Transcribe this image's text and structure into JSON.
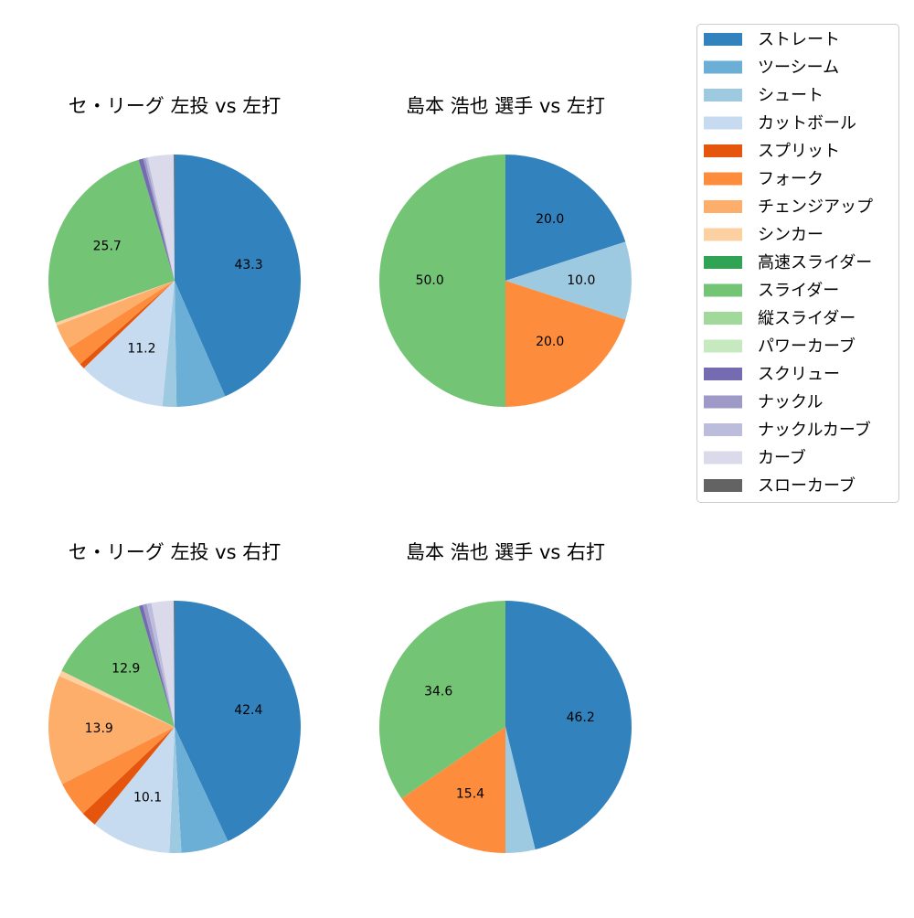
{
  "pitch_types": [
    {
      "name": "ストレート",
      "color": "#3182bd"
    },
    {
      "name": "ツーシーム",
      "color": "#6baed6"
    },
    {
      "name": "シュート",
      "color": "#9ecae1"
    },
    {
      "name": "カットボール",
      "color": "#c6dbef"
    },
    {
      "name": "スプリット",
      "color": "#e6550d"
    },
    {
      "name": "フォーク",
      "color": "#fd8d3c"
    },
    {
      "name": "チェンジアップ",
      "color": "#fdae6b"
    },
    {
      "name": "シンカー",
      "color": "#fdd0a2"
    },
    {
      "name": "高速スライダー",
      "color": "#31a354"
    },
    {
      "name": "スライダー",
      "color": "#74c476"
    },
    {
      "name": "縦スライダー",
      "color": "#a1d99b"
    },
    {
      "name": "パワーカーブ",
      "color": "#c7e9c0"
    },
    {
      "name": "スクリュー",
      "color": "#756bb1"
    },
    {
      "name": "ナックル",
      "color": "#9e9ac8"
    },
    {
      "name": "ナックルカーブ",
      "color": "#bcbddc"
    },
    {
      "name": "カーブ",
      "color": "#dadaeb"
    },
    {
      "name": "スローカーブ",
      "color": "#636363"
    }
  ],
  "chart_data": [
    {
      "type": "pie",
      "title": "セ・リーグ 左投 vs 左打",
      "slices": [
        {
          "label": "ストレート",
          "value": 43.3,
          "shown_label": "43.3"
        },
        {
          "label": "ツーシーム",
          "value": 6.3,
          "shown_label": ""
        },
        {
          "label": "シュート",
          "value": 1.8,
          "shown_label": ""
        },
        {
          "label": "カットボール",
          "value": 11.2,
          "shown_label": "11.2"
        },
        {
          "label": "スプリット",
          "value": 0.7,
          "shown_label": ""
        },
        {
          "label": "フォーク",
          "value": 2.5,
          "shown_label": ""
        },
        {
          "label": "チェンジアップ",
          "value": 3.2,
          "shown_label": ""
        },
        {
          "label": "シンカー",
          "value": 0.4,
          "shown_label": ""
        },
        {
          "label": "スライダー",
          "value": 25.7,
          "shown_label": "25.7"
        },
        {
          "label": "スクリュー",
          "value": 0.6,
          "shown_label": ""
        },
        {
          "label": "ナックル",
          "value": 0.3,
          "shown_label": ""
        },
        {
          "label": "ナックルカーブ",
          "value": 0.3,
          "shown_label": ""
        },
        {
          "label": "カーブ",
          "value": 3.3,
          "shown_label": ""
        },
        {
          "label": "スローカーブ",
          "value": 0.1,
          "shown_label": ""
        }
      ]
    },
    {
      "type": "pie",
      "title": "島本 浩也 選手 vs 左打",
      "slices": [
        {
          "label": "ストレート",
          "value": 20.0,
          "shown_label": "20.0"
        },
        {
          "label": "シュート",
          "value": 10.0,
          "shown_label": "10.0"
        },
        {
          "label": "フォーク",
          "value": 20.0,
          "shown_label": "20.0"
        },
        {
          "label": "スライダー",
          "value": 50.0,
          "shown_label": "50.0"
        }
      ]
    },
    {
      "type": "pie",
      "title": "セ・リーグ 左投 vs 右打",
      "slices": [
        {
          "label": "ストレート",
          "value": 42.4,
          "shown_label": "42.4"
        },
        {
          "label": "ツーシーム",
          "value": 6.0,
          "shown_label": ""
        },
        {
          "label": "シュート",
          "value": 1.5,
          "shown_label": ""
        },
        {
          "label": "カットボール",
          "value": 10.1,
          "shown_label": "10.1"
        },
        {
          "label": "スプリット",
          "value": 2.0,
          "shown_label": ""
        },
        {
          "label": "フォーク",
          "value": 4.5,
          "shown_label": ""
        },
        {
          "label": "チェンジアップ",
          "value": 13.9,
          "shown_label": "13.9"
        },
        {
          "label": "シンカー",
          "value": 0.7,
          "shown_label": ""
        },
        {
          "label": "スライダー",
          "value": 12.9,
          "shown_label": "12.9"
        },
        {
          "label": "スクリュー",
          "value": 0.5,
          "shown_label": ""
        },
        {
          "label": "ナックル",
          "value": 0.5,
          "shown_label": ""
        },
        {
          "label": "ナックルカーブ",
          "value": 0.6,
          "shown_label": ""
        },
        {
          "label": "カーブ",
          "value": 2.8,
          "shown_label": ""
        },
        {
          "label": "スローカーブ",
          "value": 0.1,
          "shown_label": ""
        }
      ]
    },
    {
      "type": "pie",
      "title": "島本 浩也 選手 vs 右打",
      "slices": [
        {
          "label": "ストレート",
          "value": 46.2,
          "shown_label": "46.2"
        },
        {
          "label": "シュート",
          "value": 3.8,
          "shown_label": ""
        },
        {
          "label": "フォーク",
          "value": 15.4,
          "shown_label": "15.4"
        },
        {
          "label": "スライダー",
          "value": 34.6,
          "shown_label": "34.6"
        }
      ]
    }
  ]
}
